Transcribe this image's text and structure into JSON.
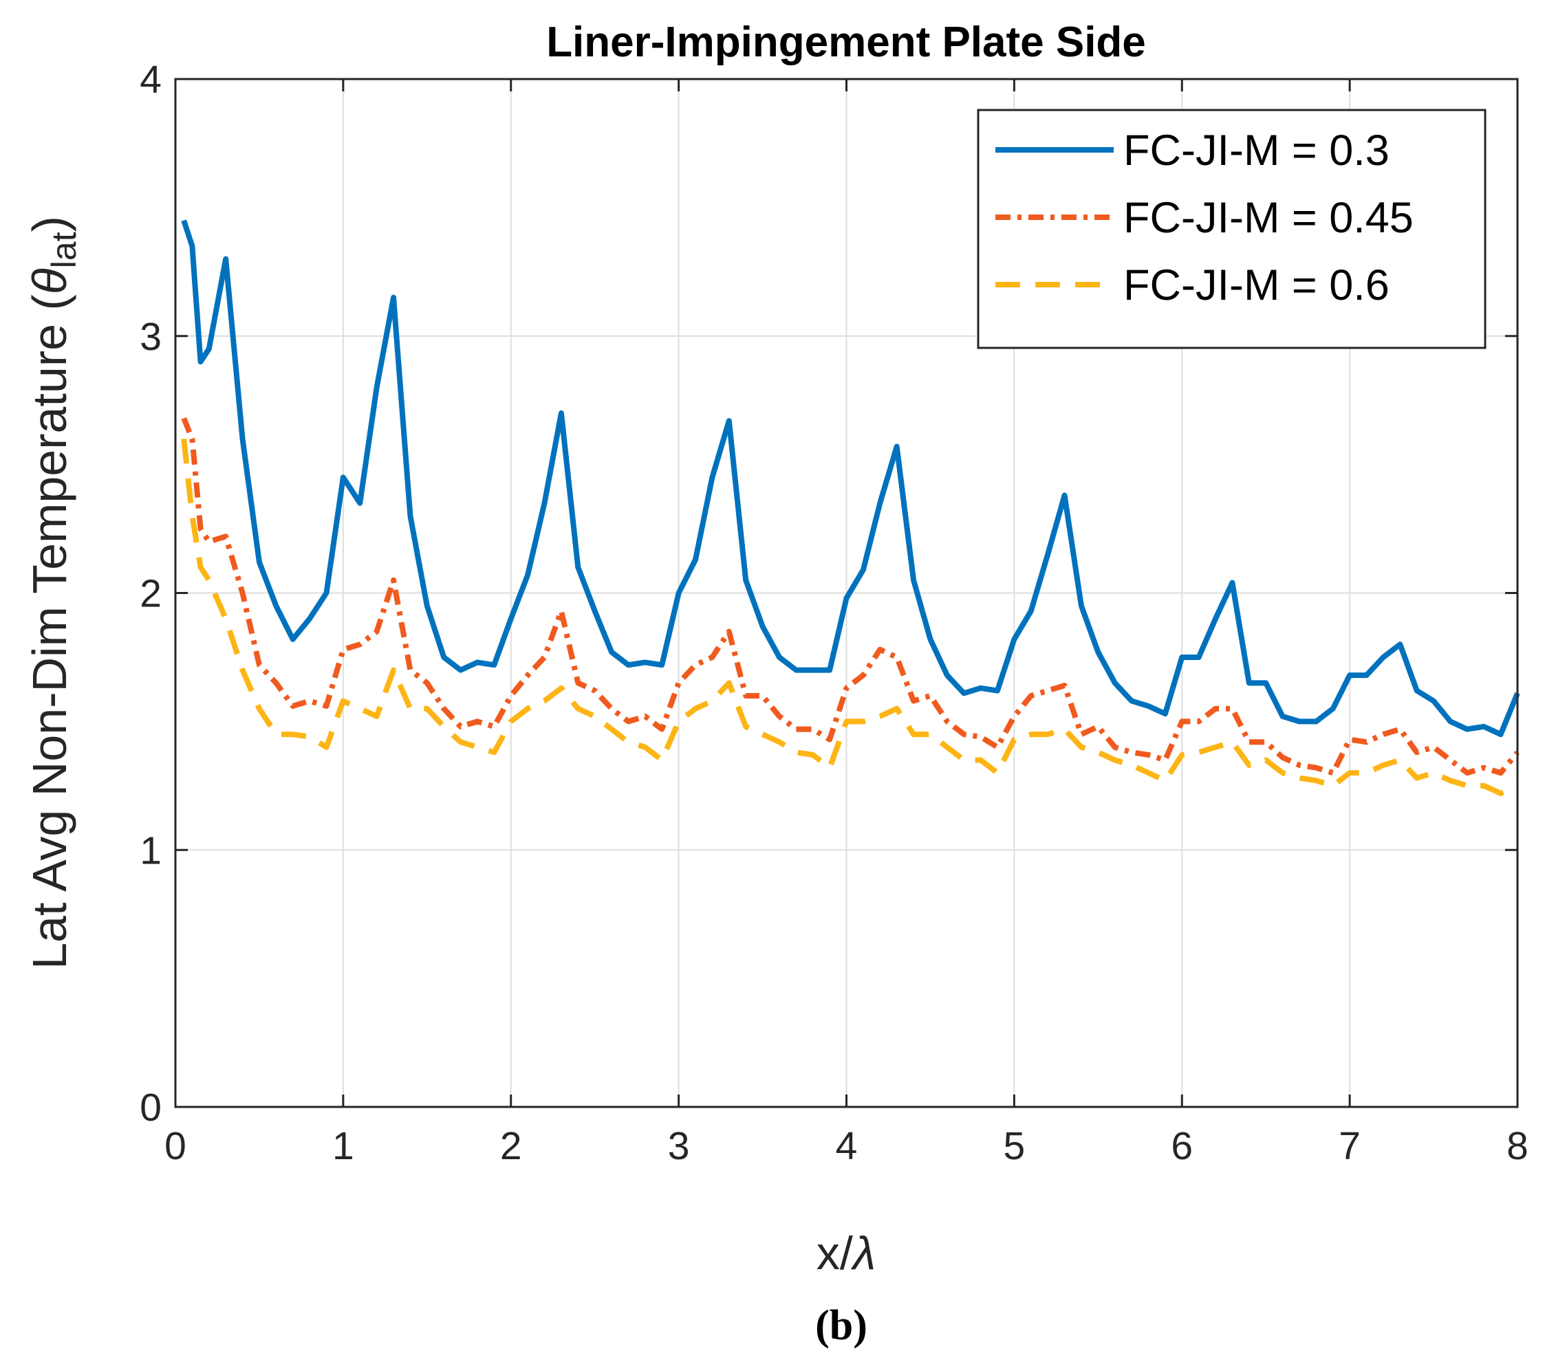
{
  "chart_data": {
    "type": "line",
    "title": "Liner-Impingement Plate Side",
    "xlabel_parts": [
      "x/",
      "λ"
    ],
    "ylabel_parts": [
      "Lat Avg Non-Dim Temperature (",
      "θ",
      "lat",
      ")"
    ],
    "caption": "(b)",
    "xlim": [
      0,
      8
    ],
    "ylim": [
      0,
      4
    ],
    "xticks": [
      0,
      1,
      2,
      3,
      4,
      5,
      6,
      7,
      8
    ],
    "yticks": [
      0,
      1,
      2,
      3,
      4
    ],
    "grid": true,
    "legend": "top-right",
    "x": [
      0.05,
      0.1,
      0.15,
      0.2,
      0.3,
      0.4,
      0.5,
      0.6,
      0.7,
      0.8,
      0.9,
      1.0,
      1.1,
      1.2,
      1.3,
      1.4,
      1.5,
      1.6,
      1.7,
      1.8,
      1.9,
      2.0,
      2.1,
      2.2,
      2.3,
      2.4,
      2.5,
      2.6,
      2.7,
      2.8,
      2.9,
      3.0,
      3.1,
      3.2,
      3.3,
      3.4,
      3.5,
      3.6,
      3.7,
      3.8,
      3.9,
      4.0,
      4.1,
      4.2,
      4.3,
      4.4,
      4.5,
      4.6,
      4.7,
      4.8,
      4.9,
      5.0,
      5.1,
      5.2,
      5.3,
      5.4,
      5.5,
      5.6,
      5.7,
      5.8,
      5.9,
      6.0,
      6.1,
      6.2,
      6.3,
      6.4,
      6.5,
      6.6,
      6.7,
      6.8,
      6.9,
      7.0,
      7.1,
      7.2,
      7.3,
      7.4,
      7.5,
      7.6,
      7.7,
      7.8,
      7.9,
      8.0
    ],
    "series": [
      {
        "name": "FC-JI-M = 0.3",
        "color": "#0072bd",
        "linestyle": "solid",
        "values": [
          3.45,
          3.35,
          2.9,
          2.95,
          3.3,
          2.6,
          2.12,
          1.95,
          1.82,
          1.9,
          2.0,
          2.45,
          2.35,
          2.8,
          3.15,
          2.3,
          1.95,
          1.75,
          1.7,
          1.73,
          1.72,
          1.9,
          2.07,
          2.35,
          2.7,
          2.1,
          1.93,
          1.77,
          1.72,
          1.73,
          1.72,
          2.0,
          2.13,
          2.45,
          2.67,
          2.05,
          1.87,
          1.75,
          1.7,
          1.7,
          1.7,
          1.98,
          2.09,
          2.35,
          2.57,
          2.05,
          1.82,
          1.68,
          1.61,
          1.63,
          1.62,
          1.82,
          1.93,
          2.15,
          2.38,
          1.95,
          1.77,
          1.65,
          1.58,
          1.56,
          1.53,
          1.75,
          1.75,
          1.9,
          2.04,
          1.65,
          1.65,
          1.52,
          1.5,
          1.5,
          1.55,
          1.68,
          1.68,
          1.75,
          1.8,
          1.62,
          1.58,
          1.5,
          1.47,
          1.48,
          1.45,
          1.61
        ]
      },
      {
        "name": "FC-JI-M = 0.45",
        "color": "#f05a1e",
        "linestyle": "dashdot",
        "values": [
          2.68,
          2.6,
          2.25,
          2.2,
          2.22,
          2.0,
          1.72,
          1.65,
          1.56,
          1.58,
          1.56,
          1.78,
          1.8,
          1.85,
          2.05,
          1.7,
          1.65,
          1.55,
          1.48,
          1.5,
          1.48,
          1.6,
          1.68,
          1.75,
          1.93,
          1.65,
          1.62,
          1.55,
          1.5,
          1.52,
          1.47,
          1.65,
          1.72,
          1.75,
          1.85,
          1.6,
          1.6,
          1.52,
          1.47,
          1.47,
          1.43,
          1.63,
          1.68,
          1.78,
          1.75,
          1.58,
          1.6,
          1.5,
          1.45,
          1.44,
          1.4,
          1.52,
          1.6,
          1.62,
          1.64,
          1.45,
          1.48,
          1.4,
          1.38,
          1.37,
          1.35,
          1.5,
          1.5,
          1.55,
          1.55,
          1.42,
          1.42,
          1.36,
          1.33,
          1.32,
          1.3,
          1.43,
          1.42,
          1.45,
          1.47,
          1.38,
          1.4,
          1.35,
          1.3,
          1.32,
          1.3,
          1.38
        ]
      },
      {
        "name": "FC-JI-M = 0.6",
        "color": "#fdb515",
        "linestyle": "dashed",
        "values": [
          2.6,
          2.3,
          2.1,
          2.05,
          1.9,
          1.7,
          1.55,
          1.45,
          1.45,
          1.44,
          1.4,
          1.58,
          1.55,
          1.52,
          1.7,
          1.55,
          1.55,
          1.48,
          1.42,
          1.4,
          1.38,
          1.5,
          1.55,
          1.58,
          1.63,
          1.55,
          1.52,
          1.47,
          1.42,
          1.4,
          1.35,
          1.5,
          1.55,
          1.58,
          1.65,
          1.48,
          1.45,
          1.42,
          1.38,
          1.37,
          1.32,
          1.5,
          1.5,
          1.52,
          1.55,
          1.45,
          1.45,
          1.4,
          1.35,
          1.35,
          1.3,
          1.43,
          1.45,
          1.45,
          1.47,
          1.4,
          1.38,
          1.35,
          1.33,
          1.3,
          1.27,
          1.37,
          1.38,
          1.4,
          1.42,
          1.33,
          1.35,
          1.3,
          1.28,
          1.27,
          1.25,
          1.3,
          1.3,
          1.33,
          1.35,
          1.28,
          1.3,
          1.27,
          1.25,
          1.25,
          1.22,
          1.25
        ]
      }
    ]
  }
}
